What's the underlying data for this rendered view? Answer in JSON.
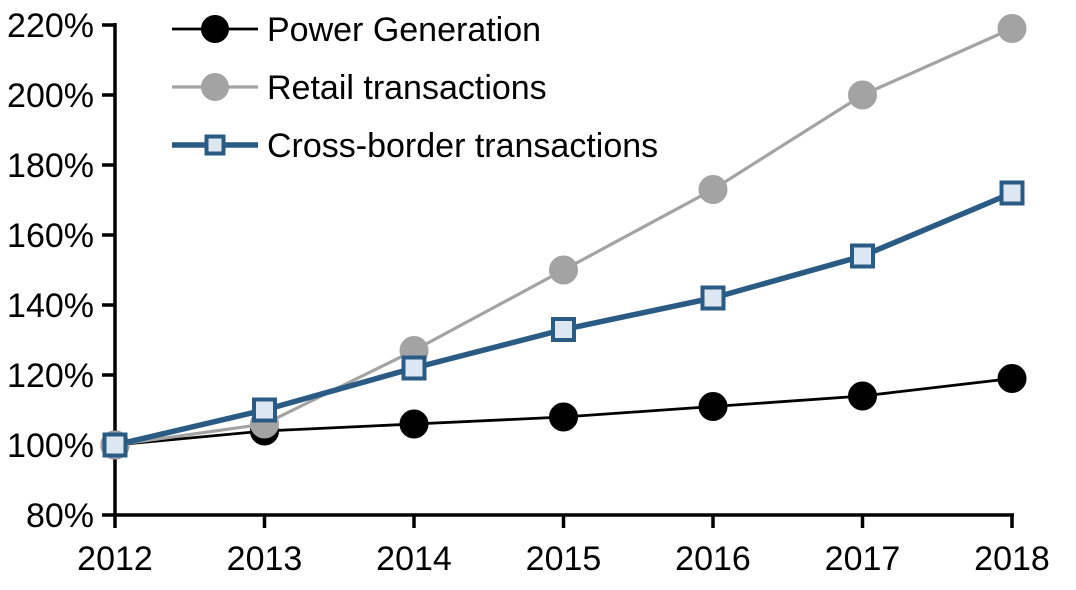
{
  "chart_data": {
    "type": "line",
    "x": [
      2012,
      2013,
      2014,
      2015,
      2016,
      2017,
      2018
    ],
    "x_tick_labels": [
      "2012",
      "2013",
      "2014",
      "2015",
      "2016",
      "2017",
      "2018"
    ],
    "y_ticks": [
      80,
      100,
      120,
      140,
      160,
      180,
      200,
      220
    ],
    "y_tick_labels": [
      "80%",
      "100%",
      "120%",
      "140%",
      "160%",
      "180%",
      "200%",
      "220%"
    ],
    "ylim": [
      80,
      220
    ],
    "grid": false,
    "legend_position": "top-left",
    "axis_color": "#000000",
    "series": [
      {
        "name": "Power Generation",
        "values": [
          100,
          104,
          106,
          108,
          111,
          114,
          119
        ],
        "line_color": "#000000",
        "line_width": 2.8,
        "marker": "circle",
        "marker_fill": "#000000",
        "marker_stroke": "#000000"
      },
      {
        "name": "Retail transactions",
        "values": [
          100,
          106,
          127,
          150,
          173,
          200,
          219
        ],
        "line_color": "#A3A3A3",
        "line_width": 3.2,
        "marker": "circle",
        "marker_fill": "#A3A3A3",
        "marker_stroke": "#A3A3A3"
      },
      {
        "name": "Cross-border transactions",
        "values": [
          100,
          110,
          122,
          133,
          142,
          154,
          172
        ],
        "line_color": "#2A5B84",
        "line_width": 5.5,
        "marker": "square",
        "marker_fill": "#DCE7F2",
        "marker_stroke": "#2A5B84"
      }
    ]
  }
}
